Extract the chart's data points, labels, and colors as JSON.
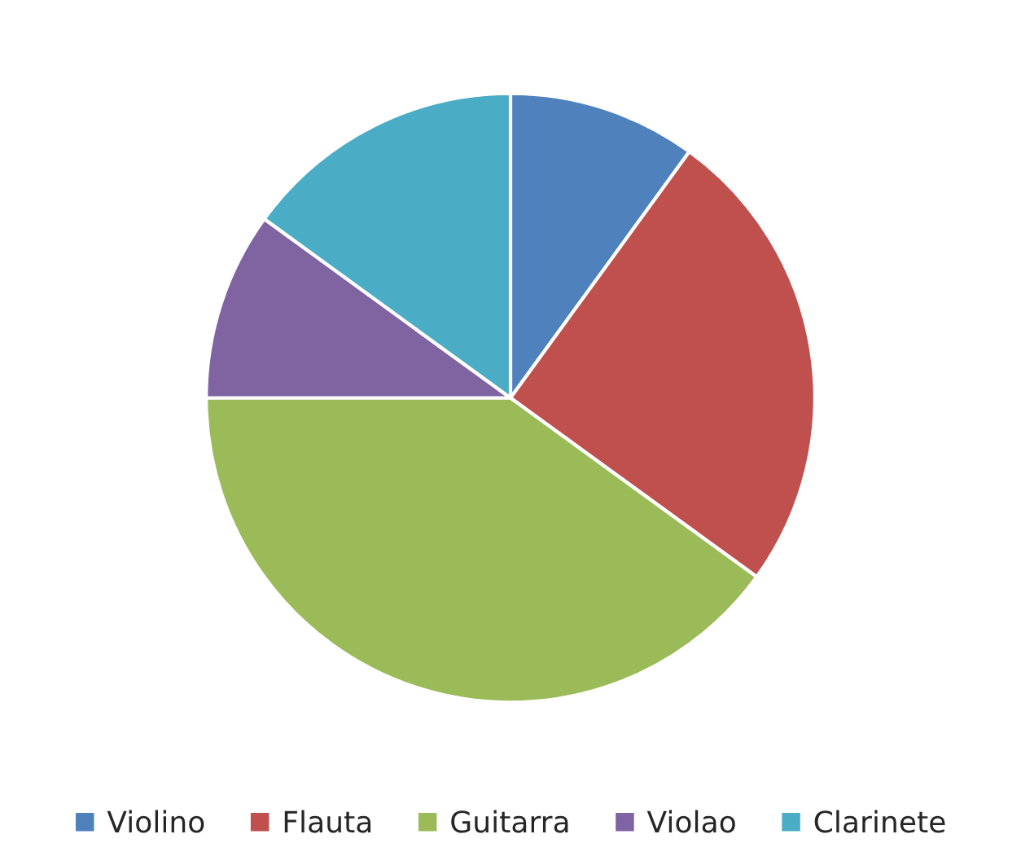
{
  "chart_data": {
    "type": "pie",
    "categories": [
      "Violino",
      "Flauta",
      "Guitarra",
      "Violao",
      "Clarinete"
    ],
    "values": [
      10,
      25,
      40,
      10,
      15
    ],
    "colors": [
      "#4f81bd",
      "#c0504d",
      "#9bbb59",
      "#8064a2",
      "#4bacc6"
    ],
    "legend": "bottom"
  }
}
